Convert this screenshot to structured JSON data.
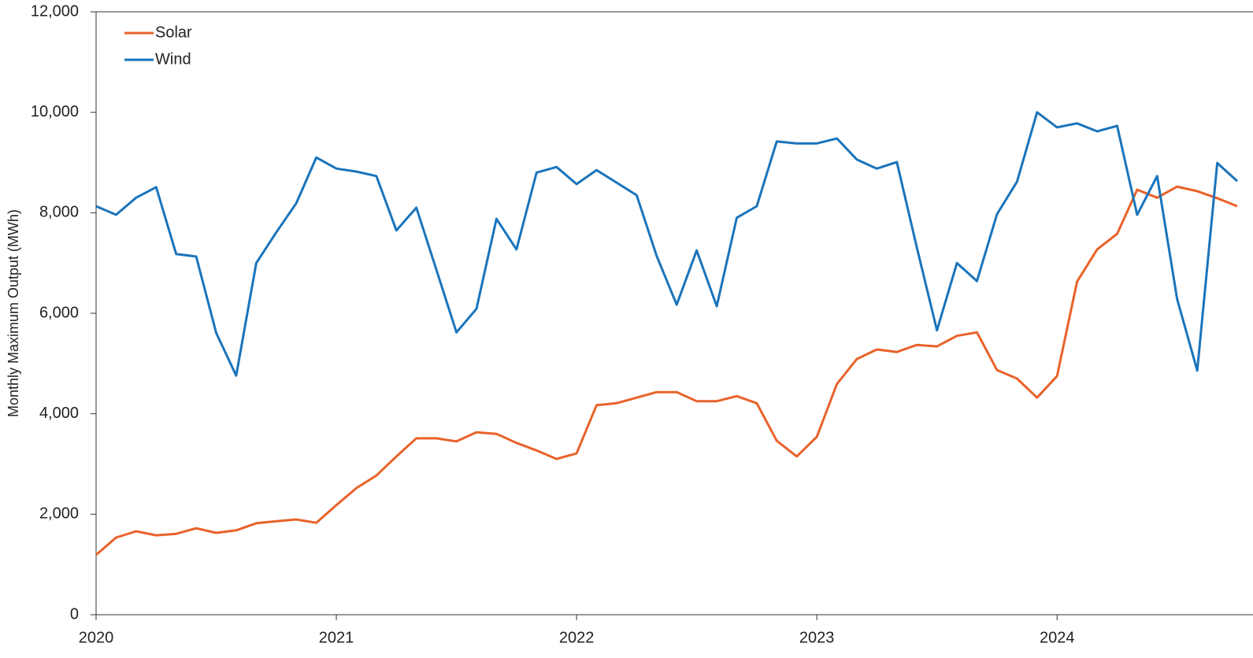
{
  "chart_data": {
    "type": "line",
    "y_label": "Monthly Maximum Output (MWh)",
    "x": [
      "2020-01",
      "2020-02",
      "2020-03",
      "2020-04",
      "2020-05",
      "2020-06",
      "2020-07",
      "2020-08",
      "2020-09",
      "2020-10",
      "2020-11",
      "2020-12",
      "2021-01",
      "2021-02",
      "2021-03",
      "2021-04",
      "2021-05",
      "2021-06",
      "2021-07",
      "2021-08",
      "2021-09",
      "2021-10",
      "2021-11",
      "2021-12",
      "2022-01",
      "2022-02",
      "2022-03",
      "2022-04",
      "2022-05",
      "2022-06",
      "2022-07",
      "2022-08",
      "2022-09",
      "2022-10",
      "2022-11",
      "2022-12",
      "2023-01",
      "2023-02",
      "2023-03",
      "2023-04",
      "2023-05",
      "2023-06",
      "2023-07",
      "2023-08",
      "2023-09",
      "2023-10",
      "2023-11",
      "2023-12",
      "2024-01",
      "2024-02",
      "2024-03",
      "2024-04",
      "2024-05",
      "2024-06",
      "2024-07",
      "2024-08",
      "2024-09",
      "2024-10"
    ],
    "series": [
      {
        "name": "Solar",
        "color": "#e8622a",
        "values": [
          1190,
          1535,
          1660,
          1580,
          1610,
          1720,
          1630,
          1680,
          1820,
          1860,
          1895,
          1830,
          2180,
          2520,
          2770,
          3150,
          3510,
          3510,
          3450,
          3630,
          3600,
          3420,
          3270,
          3100,
          3210,
          4170,
          4210,
          4320,
          4430,
          4430,
          4250,
          4250,
          4350,
          4210,
          3460,
          3150,
          3540,
          4590,
          5090,
          5280,
          5230,
          5370,
          5340,
          5550,
          5620,
          4870,
          4700,
          4320,
          4750,
          6630,
          7270,
          7580,
          8460,
          8300,
          8520,
          8430,
          8290,
          8130
        ]
      },
      {
        "name": "Wind",
        "color": "#1a74bb",
        "values": [
          8130,
          7960,
          8300,
          8510,
          7180,
          7130,
          5610,
          4760,
          7000,
          7610,
          8190,
          9100,
          8880,
          8820,
          8730,
          7650,
          8100,
          6860,
          5620,
          6090,
          7880,
          7270,
          8800,
          8910,
          8570,
          8850,
          8600,
          8350,
          7140,
          6170,
          7250,
          6140,
          7900,
          8130,
          9420,
          9380,
          9380,
          9480,
          9060,
          8880,
          9010,
          7300,
          5660,
          7000,
          6640,
          7970,
          8620,
          10000,
          9700,
          9780,
          9620,
          9730,
          7960,
          8730,
          6280,
          4860,
          8990,
          8630
        ]
      }
    ],
    "xlim": [
      "2020-01",
      "2024-10"
    ],
    "xticks": [
      "2020",
      "2021",
      "2022",
      "2023",
      "2024"
    ],
    "ylim": [
      0,
      12000
    ],
    "yticks": [
      0,
      {
        "value": 2000,
        "label": "2,000"
      },
      {
        "value": 4000,
        "label": "4,000"
      },
      {
        "value": 6000,
        "label": "6,000"
      },
      {
        "value": 8000,
        "label": "8,000"
      },
      {
        "value": 10000,
        "label": "10,000"
      },
      {
        "value": 12000,
        "label": "12,000"
      }
    ],
    "legend": "upper left"
  }
}
